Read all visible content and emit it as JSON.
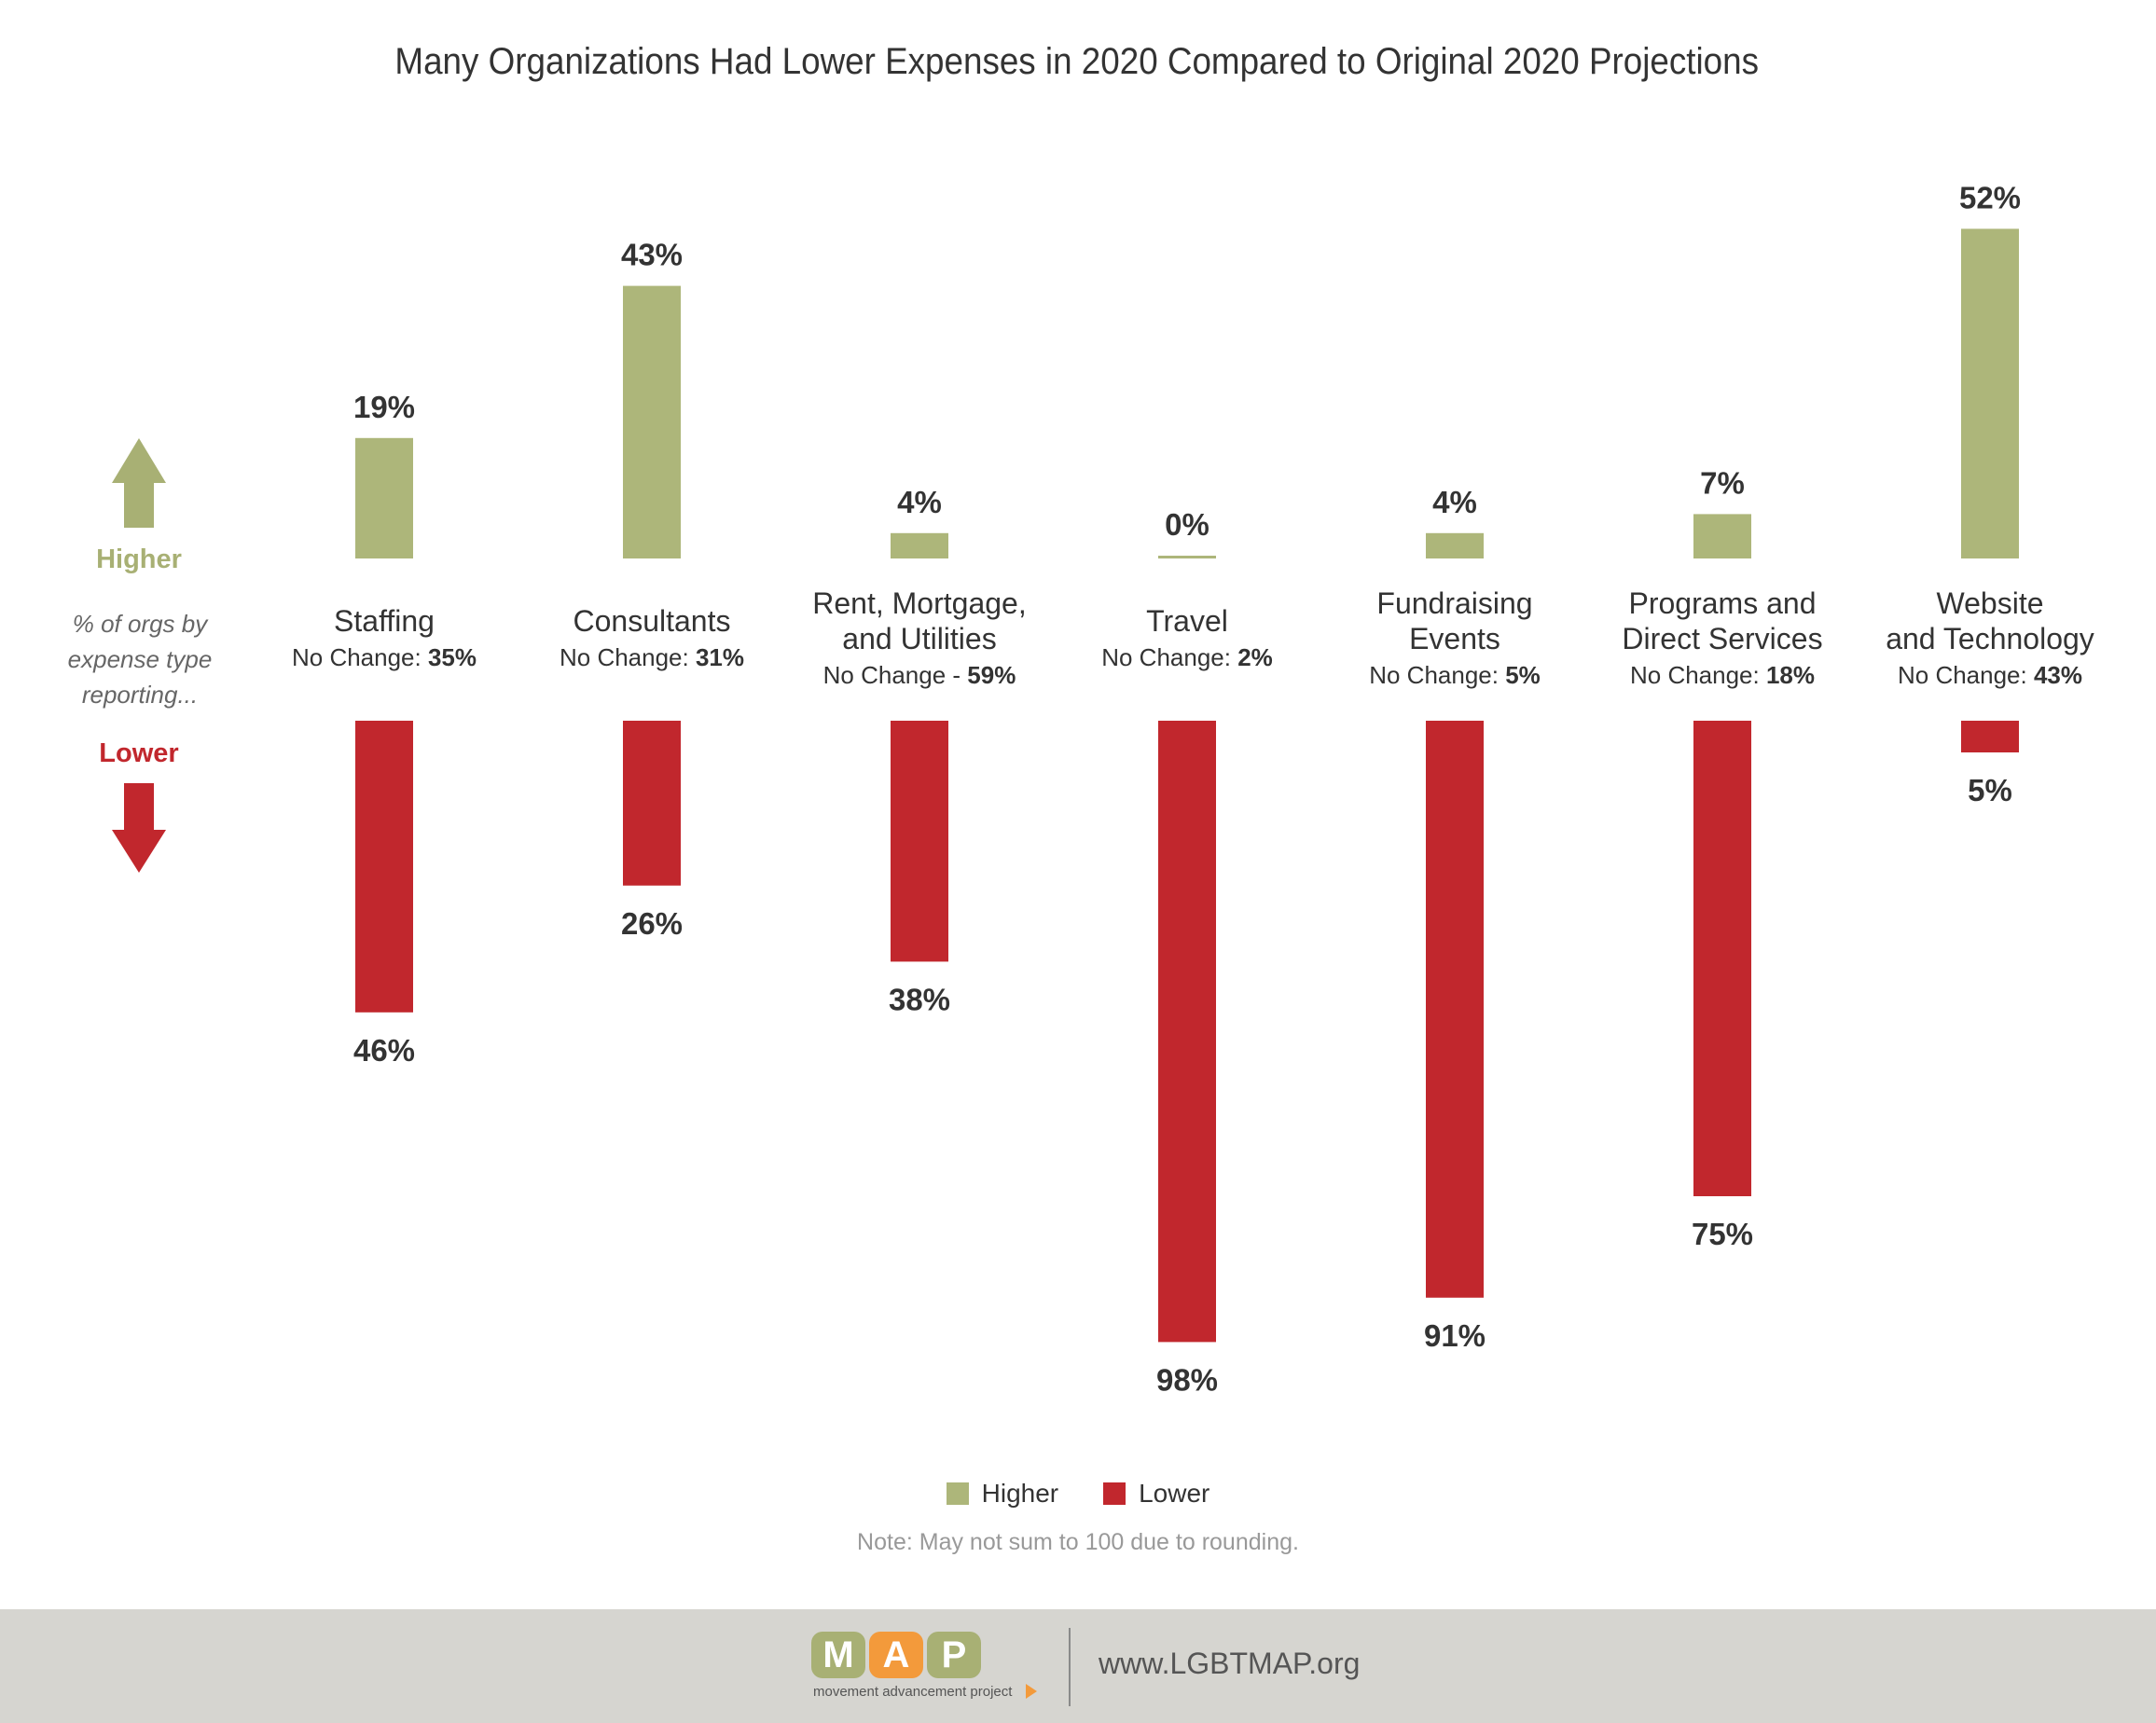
{
  "chart_data": {
    "type": "bar",
    "title": "Many Organizations Had Lower Expenses in 2020 Compared to Original 2020 Projections",
    "categories": [
      [
        "Staffing"
      ],
      [
        "Consultants"
      ],
      [
        "Rent, Mortgage,",
        "and Utilities"
      ],
      [
        "Travel"
      ],
      [
        "Fundraising",
        "Events"
      ],
      [
        "Programs and",
        "Direct Services"
      ],
      [
        "Website",
        "and Technology"
      ]
    ],
    "no_change_prefix": [
      "No Change: ",
      "No Change: ",
      "No Change - ",
      "No Change: ",
      "No Change: ",
      "No Change: ",
      "No Change: "
    ],
    "no_change_values": [
      "35%",
      "31%",
      "59%",
      "2%",
      "5%",
      "18%",
      "43%"
    ],
    "series": [
      {
        "name": "Higher",
        "values": [
          19,
          43,
          4,
          0,
          4,
          7,
          52
        ],
        "labels": [
          "19%",
          "43%",
          "4%",
          "0%",
          "4%",
          "7%",
          "52%"
        ],
        "color": "#adb67a"
      },
      {
        "name": "Lower",
        "values": [
          46,
          26,
          38,
          98,
          91,
          75,
          5
        ],
        "labels": [
          "46%",
          "26%",
          "38%",
          "98%",
          "91%",
          "75%",
          "5%"
        ],
        "color": "#c1272d"
      }
    ],
    "legend_position": "bottom-center",
    "grid": false
  },
  "side_labels": {
    "higher": "Higher",
    "lower": "Lower",
    "note": "% of orgs by expense type reporting..."
  },
  "legend": {
    "higher": "Higher",
    "lower": "Lower"
  },
  "note": "Note: May not sum to 100 due to rounding.",
  "footer": {
    "logo_letters": [
      "M",
      "A",
      "P"
    ],
    "logo_colors": [
      "#a8b074",
      "#f39a3b",
      "#a8b074"
    ],
    "logo_tagline": "movement advancement project",
    "url": "www.LGBTMAP.org"
  }
}
